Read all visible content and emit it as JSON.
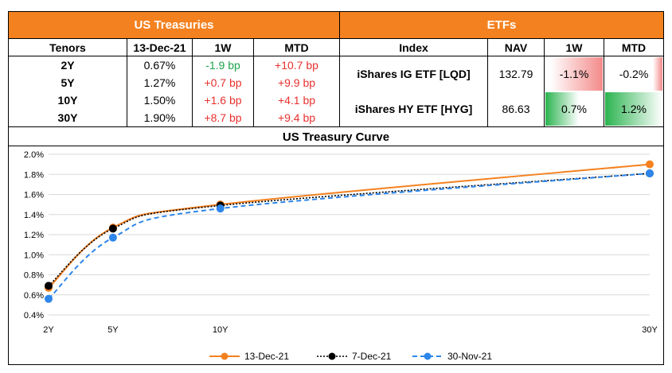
{
  "treasuries": {
    "title": "US Treasuries",
    "headers": [
      "Tenors",
      "13-Dec-21",
      "1W",
      "MTD"
    ],
    "rows": [
      {
        "tenor": "2Y",
        "yield": "0.67%",
        "w1": "-1.9 bp",
        "mtd": "+10.7 bp"
      },
      {
        "tenor": "5Y",
        "yield": "1.27%",
        "w1": "+0.7 bp",
        "mtd": "+9.9 bp"
      },
      {
        "tenor": "10Y",
        "yield": "1.50%",
        "w1": "+1.6 bp",
        "mtd": "+4.1 bp"
      },
      {
        "tenor": "30Y",
        "yield": "1.90%",
        "w1": "+8.7 bp",
        "mtd": "+9.4 bp"
      }
    ]
  },
  "etfs": {
    "title": "ETFs",
    "headers": [
      "Index",
      "NAV",
      "1W",
      "MTD"
    ],
    "rows": [
      {
        "index": "iShares IG ETF [LQD]",
        "nav": "132.79",
        "w1": "-1.1%",
        "mtd": "-0.2%",
        "w1_value": -1.1,
        "mtd_value": -0.2
      },
      {
        "index": "iShares HY ETF [HYG]",
        "nav": "86.63",
        "w1": "0.7%",
        "mtd": "1.2%",
        "w1_value": 0.7,
        "mtd_value": 1.2
      }
    ]
  },
  "colors": {
    "header": "#F4811F",
    "positive": "#1ea34a",
    "negative": "#e8312f",
    "series_13dec": "#F4811F",
    "series_7dec": "#000000",
    "series_30nov": "#2E86EA"
  },
  "chart_data": {
    "type": "line",
    "title": "US Treasury Curve",
    "x": [
      2,
      5,
      10,
      30
    ],
    "x_tick_labels": [
      "2Y",
      "5Y",
      "10Y",
      "30Y"
    ],
    "ylim": [
      0.4,
      2.0
    ],
    "y_ticks": [
      "0.4%",
      "0.6%",
      "0.8%",
      "1.0%",
      "1.2%",
      "1.4%",
      "1.6%",
      "1.8%",
      "2.0%"
    ],
    "grid": true,
    "legend": "bottom",
    "series": [
      {
        "name": "13-Dec-21",
        "values": [
          0.67,
          1.27,
          1.5,
          1.9
        ]
      },
      {
        "name": "7-Dec-21",
        "values": [
          0.69,
          1.26,
          1.49,
          1.81
        ]
      },
      {
        "name": "30-Nov-21",
        "values": [
          0.56,
          1.17,
          1.46,
          1.81
        ]
      }
    ]
  }
}
